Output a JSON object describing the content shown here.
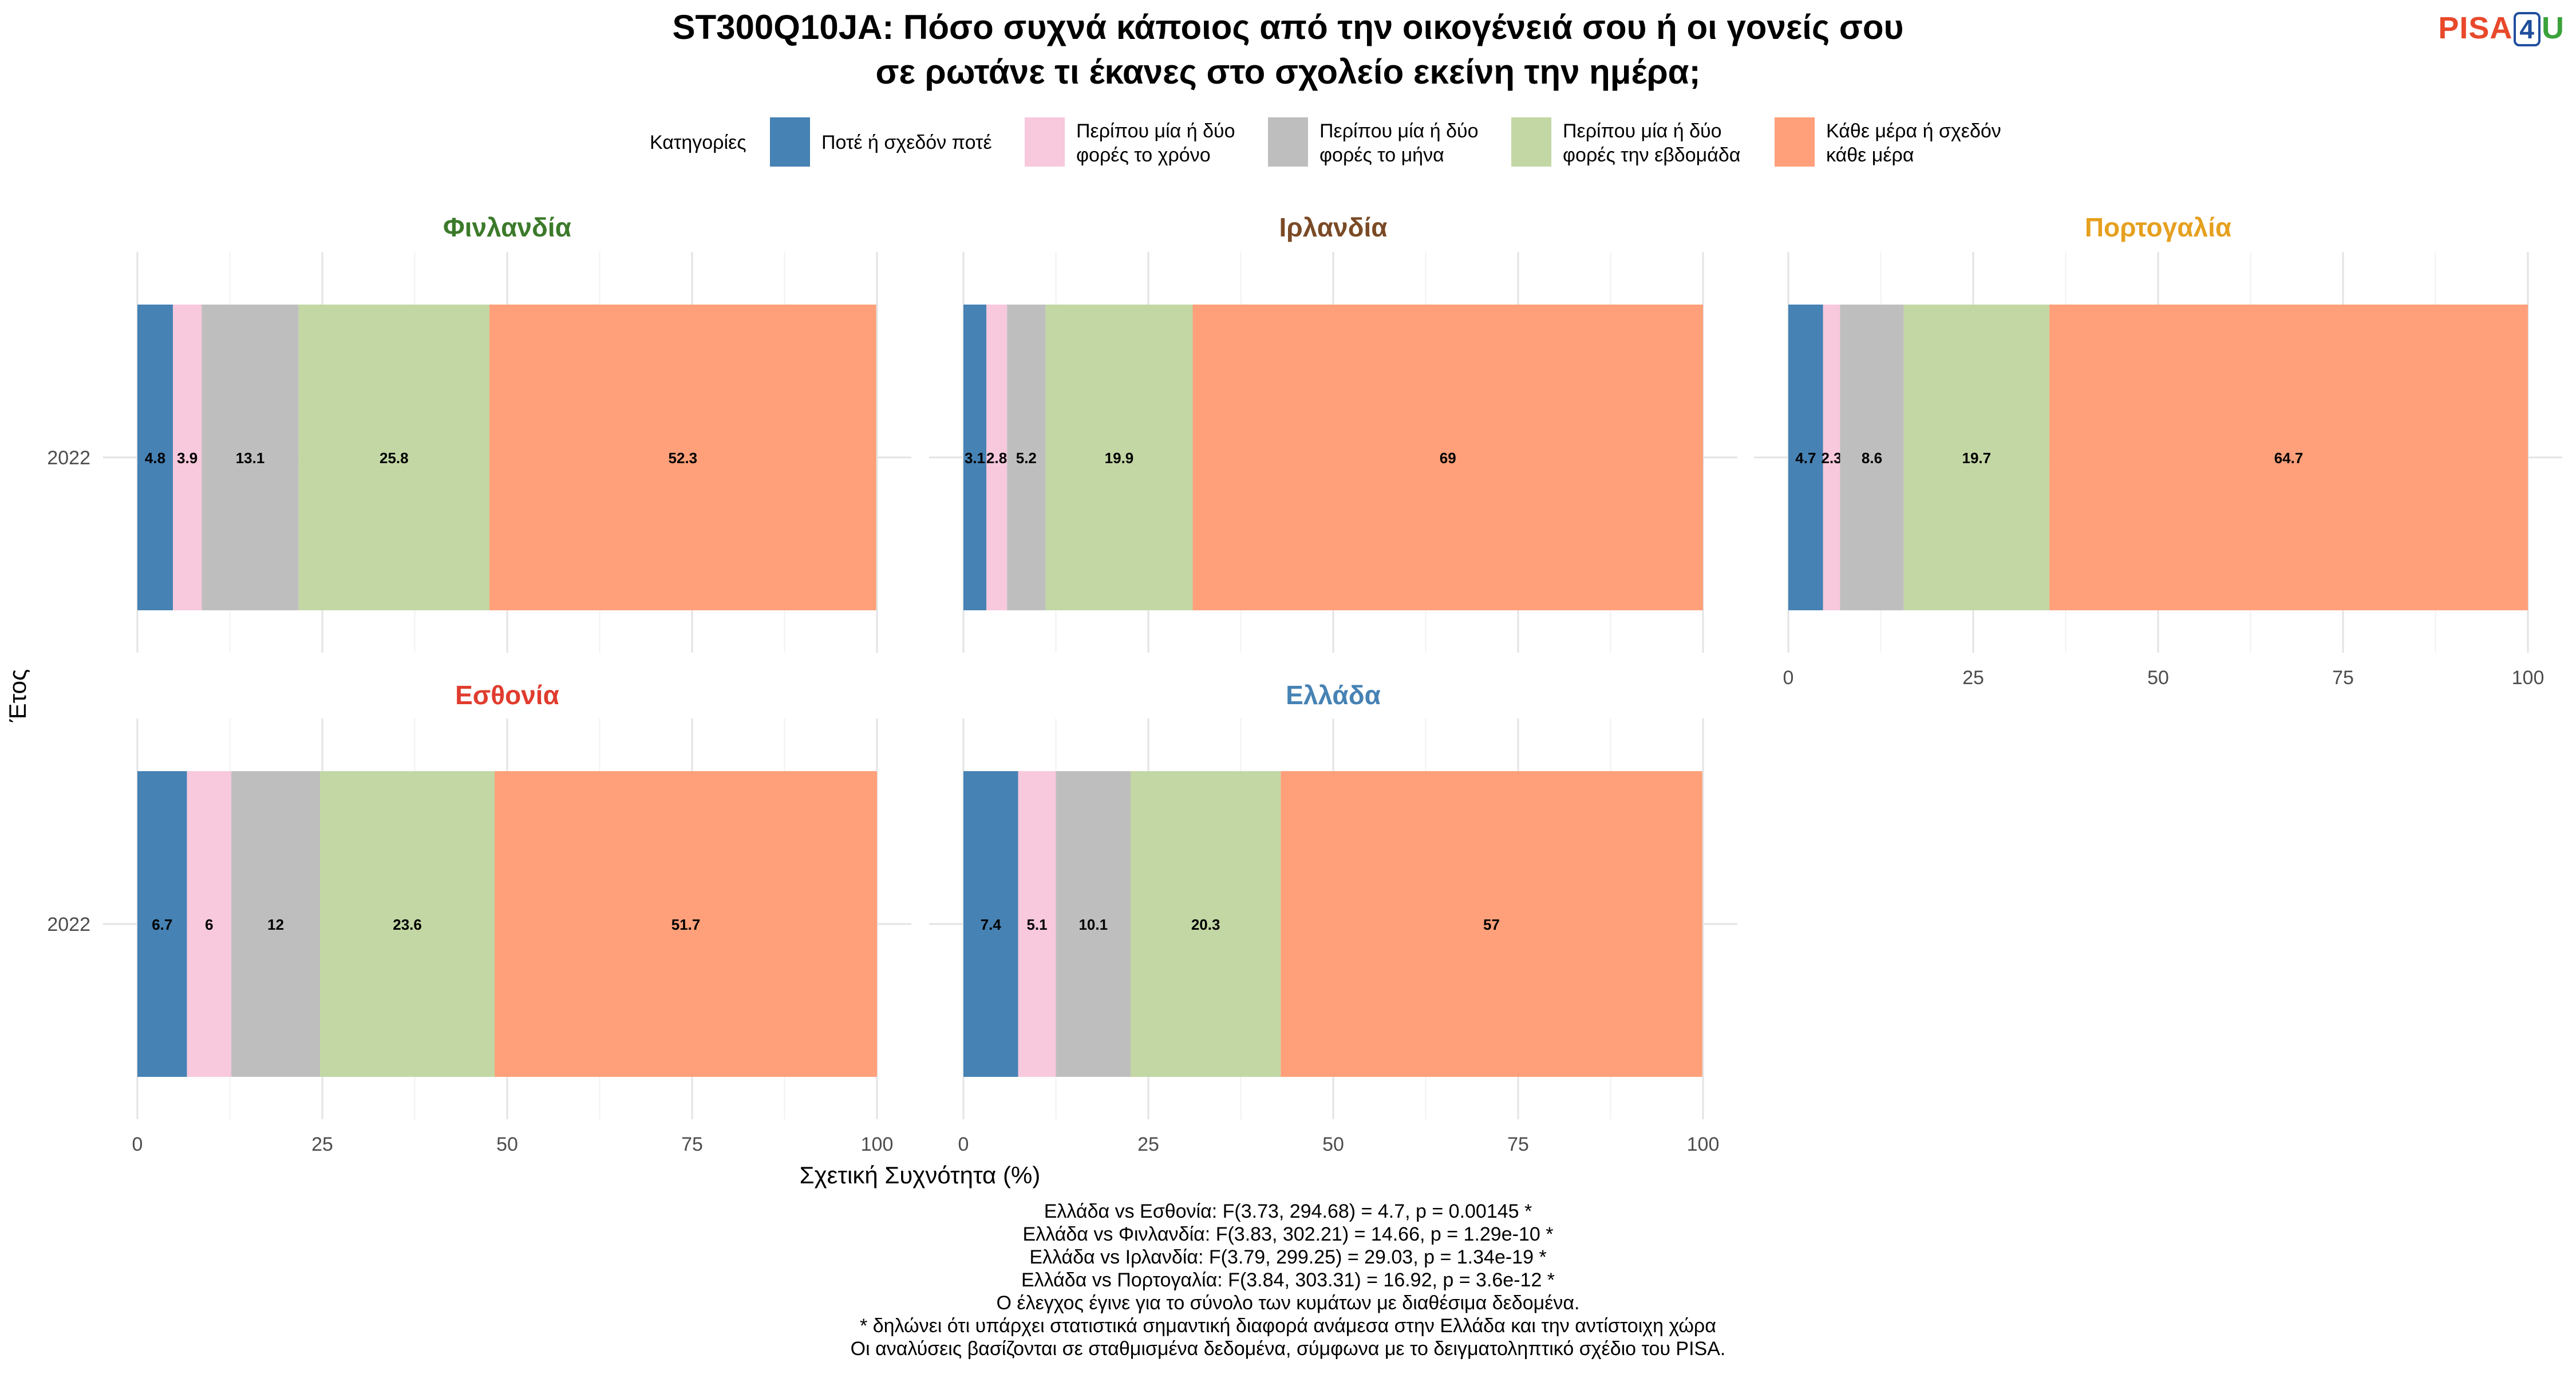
{
  "title_lines": [
    "ST300Q10JA: Πόσο συχνά κάποιος από την οικογένειά σου ή οι γονείς σου",
    "σε ρωτάνε τι έκανες στο σχολείο εκείνη την ημέρα;"
  ],
  "logo": {
    "part1": "PISA",
    "part2": "4",
    "part3": "U"
  },
  "legend": {
    "title": "Κατηγορίες",
    "items": [
      {
        "lines": [
          "Ποτέ ή σχεδόν ποτέ"
        ],
        "color": "#4682b4"
      },
      {
        "lines": [
          "Περίπου μία ή δύο",
          "φορές το χρόνο"
        ],
        "color": "#f8c8dc"
      },
      {
        "lines": [
          "Περίπου μία ή δύο",
          "φορές το μήνα"
        ],
        "color": "#bebebe"
      },
      {
        "lines": [
          "Περίπου μία ή δύο",
          "φορές την εβδομάδα"
        ],
        "color": "#c3d7a4"
      },
      {
        "lines": [
          "Κάθε μέρα ή σχεδόν",
          "κάθε μέρα"
        ],
        "color": "#ffa07a"
      }
    ]
  },
  "chart_data": {
    "type": "bar",
    "orientation": "horizontal-stacked",
    "xlabel": "Σχετική Συχνότητα (%)",
    "ylabel": "Έτος",
    "xlim": [
      0,
      100
    ],
    "xticks": [
      0,
      25,
      50,
      75,
      100
    ],
    "categories": [
      "2022"
    ],
    "grid": true,
    "legend_position": "top",
    "panels": [
      {
        "title": "Φινλανδία",
        "title_color": "#3b7a2a",
        "values": [
          4.8,
          3.9,
          13.1,
          25.8,
          52.3
        ],
        "labels": [
          "4.8",
          "3.9",
          "13.1",
          "25.8",
          "52.3"
        ]
      },
      {
        "title": "Ιρλανδία",
        "title_color": "#7a4a26",
        "values": [
          3.1,
          2.8,
          5.2,
          19.9,
          69.0
        ],
        "labels": [
          "3.1",
          "2.8",
          "5.2",
          "19.9",
          "69"
        ]
      },
      {
        "title": "Πορτογαλία",
        "title_color": "#e6a01f",
        "values": [
          4.7,
          2.3,
          8.6,
          19.7,
          64.7
        ],
        "labels": [
          "4.7",
          "2.3",
          "8.6",
          "19.7",
          "64.7"
        ]
      },
      {
        "title": "Εσθονία",
        "title_color": "#e03c2e",
        "values": [
          6.7,
          6.0,
          12.0,
          23.6,
          51.7
        ],
        "labels": [
          "6.7",
          "6",
          "12",
          "23.6",
          "51.7"
        ]
      },
      {
        "title": "Ελλάδα",
        "title_color": "#4682b4",
        "values": [
          7.4,
          5.1,
          10.1,
          20.3,
          57.0
        ],
        "labels": [
          "7.4",
          "5.1",
          "10.1",
          "20.3",
          "57"
        ]
      }
    ]
  },
  "caption_lines": [
    "Ελλάδα vs Εσθονία: F(3.73, 294.68) = 4.7, p = 0.00145 *",
    "Ελλάδα vs Φινλανδία: F(3.83, 302.21) = 14.66, p = 1.29e-10 *",
    "Ελλάδα vs Ιρλανδία: F(3.79, 299.25) = 29.03, p = 1.34e-19 *",
    "Ελλάδα vs Πορτογαλία: F(3.84, 303.31) = 16.92, p = 3.6e-12 *",
    "Ο έλεγχος έγινε για το σύνολο των κυμάτων με διαθέσιμα δεδομένα.",
    "* δηλώνει ότι υπάρχει στατιστικά σημαντική διαφορά ανάμεσα στην Ελλάδα και την αντίστοιχη χώρα",
    "Οι αναλύσεις βασίζονται σε σταθμισμένα δεδομένα, σύμφωνα με το δειγματοληπτικό σχέδιο του PISA."
  ]
}
